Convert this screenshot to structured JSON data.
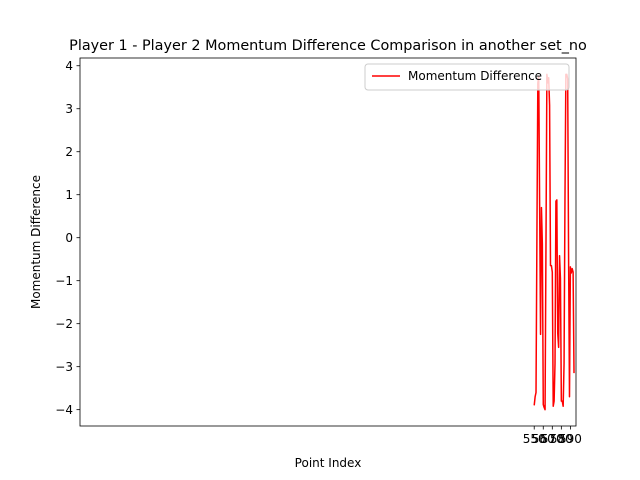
{
  "chart_data": {
    "type": "line",
    "title": "Player 1 - Player 2 Momentum Difference Comparison in another set_no",
    "xlabel": "Point Index",
    "ylabel": "Momentum Difference",
    "xlim": [
      47.8,
      596.2
    ],
    "ylim": [
      -4.38,
      4.18
    ],
    "xticks": [
      550,
      560,
      570,
      580,
      590
    ],
    "yticks": [
      -4,
      -3,
      -2,
      -1,
      0,
      1,
      2,
      3,
      4
    ],
    "grid": false,
    "legend": {
      "location": "upper right",
      "entries": [
        "Momentum Difference"
      ]
    },
    "series": [
      {
        "name": "Momentum Difference",
        "color": "#ff0000",
        "x": [
          550,
          551,
          552,
          553,
          554,
          555,
          556,
          557,
          558,
          559,
          560,
          561,
          562,
          563,
          564,
          565,
          566,
          567,
          568,
          569,
          570,
          571,
          572,
          573,
          574,
          575,
          576,
          577,
          578,
          579,
          580,
          581,
          582,
          583,
          584,
          585,
          586,
          587,
          588,
          589,
          590,
          591,
          592,
          593,
          594
        ],
        "y": [
          -3.9,
          -3.7,
          -3.6,
          0.1,
          3.6,
          3.75,
          0.75,
          -2.25,
          0.7,
          -0.15,
          -3.88,
          -3.95,
          -4.0,
          -0.2,
          3.8,
          3.6,
          3.72,
          3.08,
          -0.65,
          -0.65,
          -0.8,
          -3.92,
          -3.8,
          -2.92,
          0.85,
          0.88,
          -2.22,
          -2.55,
          -0.42,
          -0.95,
          -3.8,
          -3.8,
          -3.92,
          -2.92,
          0.9,
          3.8,
          3.8,
          3.7,
          -0.4,
          -3.7,
          -0.68,
          -0.82,
          -0.72,
          -0.8,
          -3.15
        ]
      }
    ]
  }
}
